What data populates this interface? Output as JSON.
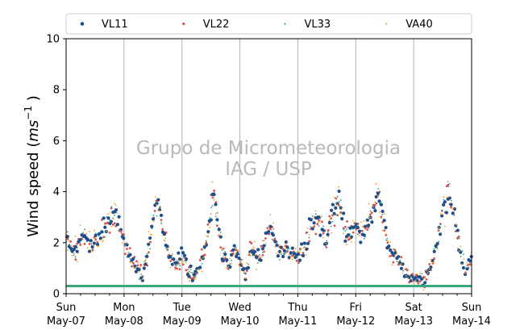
{
  "chart_data": {
    "type": "scatter",
    "title": "",
    "ylabel": "Wind speed (ms⁻¹ )",
    "ylabel_parts": {
      "pre": "Wind speed (",
      "italic": "ms",
      "sup": "−1",
      "post": " )"
    },
    "xlabel": "",
    "ylim": [
      0,
      10
    ],
    "y_ticks": [
      "0",
      "2",
      "4",
      "6",
      "8",
      "10"
    ],
    "x_domain": [
      "2023-05-07T00:00",
      "2023-05-14T00:00"
    ],
    "x_ticks": [
      {
        "day": "Sun",
        "date": "May-07"
      },
      {
        "day": "Mon",
        "date": "May-08"
      },
      {
        "day": "Tue",
        "date": "May-09"
      },
      {
        "day": "Wed",
        "date": "May-10"
      },
      {
        "day": "Thu",
        "date": "May-11"
      },
      {
        "day": "Fri",
        "date": "May-12"
      },
      {
        "day": "Sat",
        "date": "May-13"
      },
      {
        "day": "Sun",
        "date": "May-14"
      }
    ],
    "grid": "vertical",
    "legend_placement": "top",
    "watermark": [
      "Grupo de Micrometeorologia",
      "IAG / USP"
    ],
    "threshold_line": {
      "y": 0.3,
      "color": "#3aa87a"
    },
    "profile": {
      "x_days": [
        0,
        0.15,
        0.3,
        0.45,
        0.6,
        0.75,
        0.85,
        0.95,
        1.05,
        1.15,
        1.25,
        1.32,
        1.4,
        1.5,
        1.6,
        1.7,
        1.8,
        1.9,
        2.0,
        2.1,
        2.2,
        2.3,
        2.4,
        2.5,
        2.55,
        2.6,
        2.7,
        2.8,
        2.9,
        3.0,
        3.1,
        3.2,
        3.3,
        3.4,
        3.5,
        3.6,
        3.7,
        3.8,
        3.9,
        4.0,
        4.1,
        4.2,
        4.3,
        4.4,
        4.5,
        4.6,
        4.7,
        4.8,
        4.9,
        5.0,
        5.1,
        5.2,
        5.3,
        5.4,
        5.5,
        5.6,
        5.7,
        5.8,
        5.9,
        6.0,
        6.1,
        6.2,
        6.3,
        6.4,
        6.5,
        6.6,
        6.7,
        6.8,
        6.9,
        7.0
      ],
      "y": [
        2.0,
        1.6,
        2.4,
        1.8,
        2.3,
        2.8,
        3.1,
        2.4,
        1.7,
        1.3,
        0.9,
        0.8,
        1.5,
        2.9,
        3.5,
        2.1,
        1.4,
        1.2,
        1.5,
        1.0,
        0.6,
        1.0,
        1.8,
        3.3,
        4.2,
        3.0,
        1.6,
        1.0,
        1.8,
        1.3,
        0.8,
        1.8,
        1.3,
        1.7,
        2.6,
        2.2,
        1.4,
        1.9,
        1.6,
        1.5,
        1.7,
        2.5,
        3.0,
        2.6,
        2.2,
        2.9,
        3.9,
        2.5,
        2.2,
        2.7,
        2.3,
        2.6,
        3.3,
        3.8,
        2.5,
        1.6,
        1.5,
        1.0,
        0.7,
        0.6,
        0.5,
        0.6,
        1.1,
        2.0,
        3.2,
        4.1,
        3.1,
        1.8,
        0.8,
        1.4
      ]
    },
    "series": [
      {
        "name": "VL11",
        "color": "#1f4e8c",
        "marker": "large-dot"
      },
      {
        "name": "VL22",
        "color": "#d9534f",
        "marker": "small-dot"
      },
      {
        "name": "VL33",
        "color": "#2a9d8f",
        "marker": "tiny-dot"
      },
      {
        "name": "VA40",
        "color": "#f59e2b",
        "marker": "tiny-dot"
      }
    ]
  }
}
